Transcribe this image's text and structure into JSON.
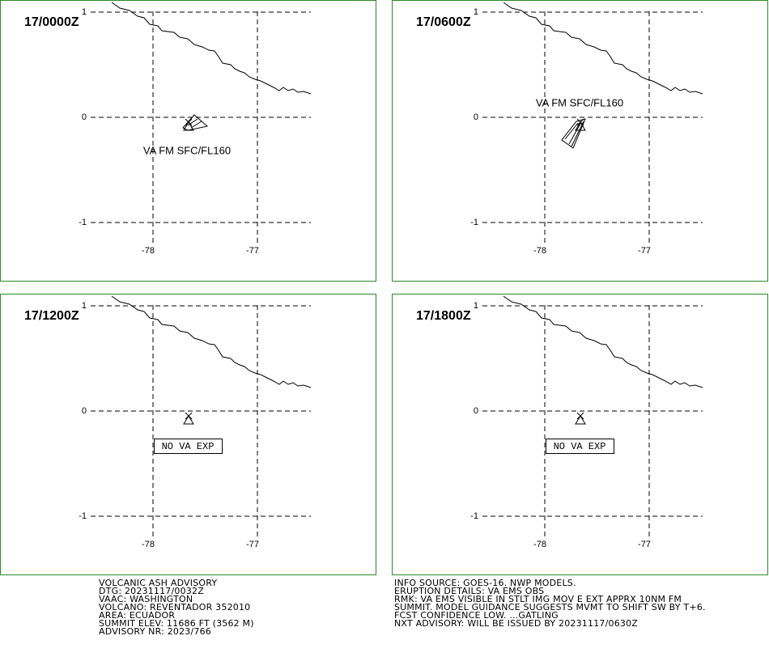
{
  "grid": {
    "lat_ticks": [
      1,
      0,
      -1
    ],
    "lon_ticks": [
      -78,
      -77
    ]
  },
  "panels": [
    {
      "time": "17/0000Z",
      "annotation": "VA FM SFC/FL160"
    },
    {
      "time": "17/0600Z",
      "annotation": "VA FM SFC/FL160"
    },
    {
      "time": "17/1200Z",
      "annotation": "NO VA EXP"
    },
    {
      "time": "17/1800Z",
      "annotation": "NO VA EXP"
    }
  ],
  "advisory_left": [
    "VOLCANIC ASH ADVISORY",
    "DTG: 20231117/0032Z",
    "VAAC: WASHINGTON",
    "VOLCANO: REVENTADOR 352010",
    "AREA: ECUADOR",
    "SUMMIT ELEV: 11686 FT (3562 M)",
    "ADVISORY NR: 2023/766"
  ],
  "advisory_right": [
    "INFO SOURCE: GOES-16. NWP MODELS.",
    "ERUPTION DETAILS: VA EMS OBS",
    "RMK: VA EMS VISIBLE IN STLT IMG MOV E EXT APPRX 10NM FM",
    "SUMMIT. MODEL GUIDANCE SUGGESTS MVMT TO SHIFT SW BY T+6.",
    "FCST CONFIDENCE LOW. ...GATLING",
    "NXT ADVISORY: WILL BE ISSUED BY 20231117/0630Z"
  ]
}
